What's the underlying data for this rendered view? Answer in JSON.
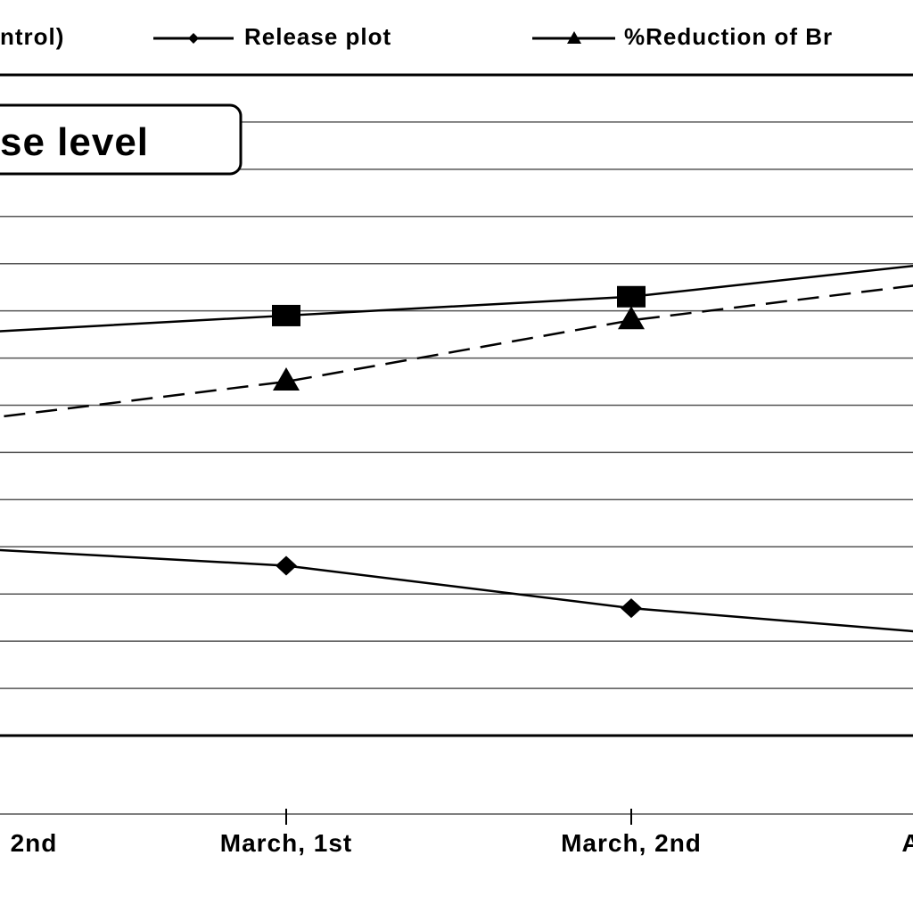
{
  "chart_data": {
    "type": "line",
    "title": "",
    "xlabel": "",
    "ylabel": "",
    "categories": [
      "2nd",
      "March, 1st",
      "March, 2nd",
      "A"
    ],
    "grid": true,
    "legend_placement": "top",
    "legend": [
      {
        "label": "ntrol)",
        "marker": "square",
        "dash": "solid"
      },
      {
        "label": "Release plot",
        "marker": "diamond",
        "dash": "solid"
      },
      {
        "label": "%Reduction of Br",
        "marker": "triangle",
        "dash": "dashed"
      }
    ],
    "annotation": "se level",
    "series": [
      {
        "marker": "square",
        "dash": "solid",
        "values": [
          1.0,
          1.4,
          1.8,
          2.6
        ]
      },
      {
        "marker": "triangle",
        "dash": "dashed",
        "values": [
          -0.9,
          0.0,
          1.3,
          2.2
        ]
      },
      {
        "marker": "diamond",
        "dash": "solid",
        "values": [
          -3.5,
          -3.9,
          -4.8,
          -5.4
        ]
      }
    ],
    "ylim": [
      -7.5,
      6.5
    ],
    "colors": {
      "line": "#000000",
      "grid": "#555555",
      "background": "#ffffff"
    }
  }
}
